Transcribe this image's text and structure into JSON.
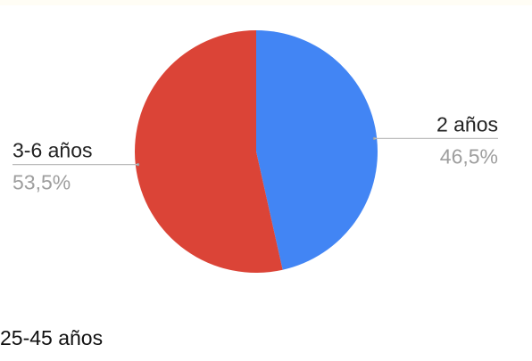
{
  "chart_data": {
    "type": "pie",
    "title": "",
    "slices": [
      {
        "label": "2 años",
        "value": 46.5,
        "display": "46,5%",
        "color": "#4285f4"
      },
      {
        "label": "3-6 años",
        "value": 53.5,
        "display": "53,5%",
        "color": "#db4437"
      }
    ],
    "start_angle_deg": 0,
    "direction": "clockwise",
    "labels_outside": true,
    "label_text_color": "#222222",
    "percent_text_color": "#9e9e9e",
    "leader_line_color": "#bdbdbd"
  },
  "caption": "25-45 años"
}
